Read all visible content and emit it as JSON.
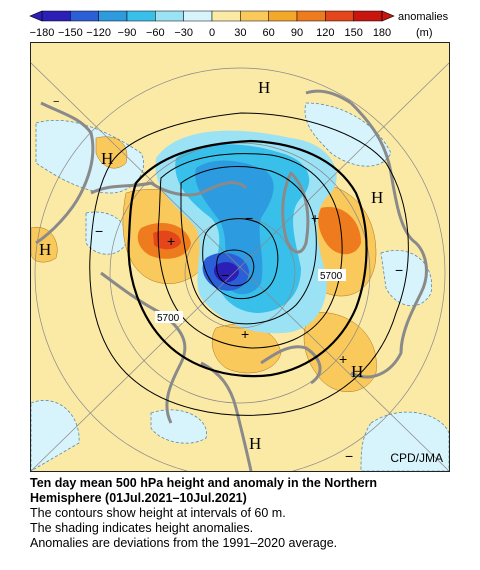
{
  "colorbar": {
    "ticks": [
      "−180",
      "−150",
      "−120",
      "−90",
      "−60",
      "−30",
      "0",
      "30",
      "60",
      "90",
      "120",
      "150",
      "180"
    ],
    "unit_line1": "anomalies",
    "unit_line2": "(m)",
    "colors": [
      "#2b1fb8",
      "#2b5fd8",
      "#2c9be0",
      "#39c0ea",
      "#9be2f5",
      "#d7f3fb",
      "#fbe9a6",
      "#f9c95b",
      "#f5a72a",
      "#ee7b1e",
      "#e4461a",
      "#c8150f"
    ]
  },
  "map": {
    "contour_label_1": "5700",
    "contour_label_2": "5700",
    "high_marker": "H",
    "plus_marker": "+",
    "minus_marker": "−",
    "credit": "CPD/JMA"
  },
  "caption": {
    "title_line1": "Ten day mean 500 hPa height and anomaly in the Northern",
    "title_line2": "Hemisphere (01Jul.2021–10Jul.2021)",
    "line3": "The contours show height at intervals of 60 m.",
    "line4": "The shading indicates height anomalies.",
    "line5": "Anomalies are deviations from the 1991–2020 average."
  }
}
